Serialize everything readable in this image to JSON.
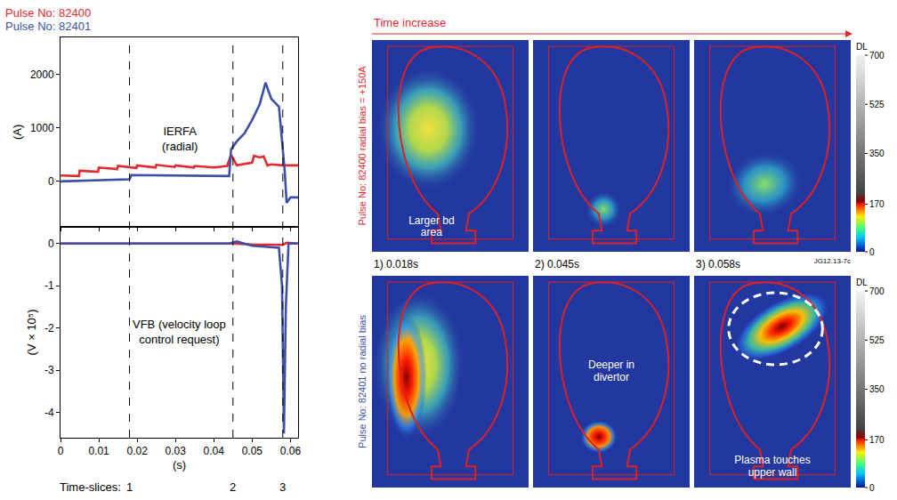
{
  "chart_data": [
    {
      "type": "line",
      "y_label": "(A)",
      "ylim": [
        -850,
        2700
      ],
      "yticks": [
        0,
        1000,
        2000
      ],
      "xlim": [
        0,
        0.062
      ],
      "xticks": [
        0,
        0.01,
        0.02,
        0.03,
        0.04,
        0.05,
        0.06
      ],
      "tick_labels": "y",
      "legend": "top left",
      "series": [
        {
          "name": "Pulse No: 82400",
          "color": "#e8262d",
          "x": [
            0,
            0.0048,
            0.005,
            0.0098,
            0.01,
            0.0148,
            0.015,
            0.0198,
            0.02,
            0.0248,
            0.025,
            0.0298,
            0.03,
            0.0348,
            0.035,
            0.0398,
            0.04,
            0.0435,
            0.0445,
            0.046,
            0.048,
            0.05,
            0.0505,
            0.052,
            0.053,
            0.054,
            0.055,
            0.058,
            0.062
          ],
          "values": [
            110,
            100,
            200,
            180,
            260,
            230,
            290,
            250,
            300,
            260,
            310,
            270,
            300,
            260,
            290,
            250,
            260,
            290,
            500,
            300,
            330,
            350,
            480,
            450,
            470,
            300,
            320,
            300,
            300
          ]
        },
        {
          "name": "Pulse No: 82401",
          "color": "#3d4fa6",
          "x": [
            0,
            0.005,
            0.01,
            0.015,
            0.018,
            0.0185,
            0.03,
            0.044,
            0.0445,
            0.046,
            0.048,
            0.05,
            0.052,
            0.0535,
            0.055,
            0.057,
            0.0585,
            0.059,
            0.0595,
            0.06,
            0.062
          ],
          "values": [
            0,
            10,
            20,
            30,
            40,
            120,
            110,
            100,
            600,
            750,
            900,
            1150,
            1450,
            1850,
            1550,
            1400,
            200,
            -400,
            -350,
            -300,
            -300
          ]
        }
      ],
      "annotations": [
        {
          "text": "IERFA\n(radial)",
          "x": 0.031,
          "y": 800
        }
      ]
    },
    {
      "type": "line",
      "y_label": "(V × 10⁵)",
      "x_label": "(s)",
      "ylim": [
        -4.6,
        0.4
      ],
      "yticks": [
        0,
        -1,
        -2,
        -3,
        -4
      ],
      "xlim": [
        0,
        0.062
      ],
      "xticks": [
        0,
        0.01,
        0.02,
        0.03,
        0.04,
        0.05,
        0.06
      ],
      "series": [
        {
          "name": "Pulse No: 82400",
          "color": "#e8262d",
          "x": [
            0,
            0.045,
            0.05,
            0.058,
            0.059,
            0.062
          ],
          "values": [
            0,
            0,
            -0.02,
            -0.03,
            0.02,
            0
          ]
        },
        {
          "name": "Pulse No: 82401",
          "color": "#3d4fa6",
          "x": [
            0,
            0.044,
            0.046,
            0.05,
            0.057,
            0.0578,
            0.0583,
            0.0588,
            0.0595,
            0.062
          ],
          "values": [
            0,
            0,
            0.05,
            -0.05,
            -0.1,
            -1.0,
            -4.5,
            -1.5,
            0,
            0
          ]
        }
      ],
      "annotations": [
        {
          "text": "VFB (velocity loop\ncontrol request)",
          "x": 0.031,
          "y": -2.1
        }
      ],
      "time_slices": {
        "label": "Time-slices:",
        "x": [
          0.018,
          0.045,
          0.058
        ],
        "labels": [
          "1",
          "2",
          "3"
        ]
      }
    }
  ],
  "images": {
    "header": "Time increase",
    "rows": [
      {
        "label": "Pulse No: 82400 radial bias = +150A",
        "color": "#e8262d",
        "notes": [
          "Larger bd\narea",
          null,
          null
        ]
      },
      {
        "label": "Pulse No: 82401 no radial bias",
        "color": "#3d4fa6",
        "notes": [
          null,
          "Deeper in\ndivertor",
          "Plasma touches\nupper wall"
        ]
      }
    ],
    "time_labels": [
      "1) 0.018s",
      "2) 0.045s",
      "3) 0.058s"
    ],
    "code": "JG12.13-7c",
    "colorbar": {
      "title": "DL",
      "range": [
        0,
        700
      ],
      "ticks": [
        0,
        170,
        350,
        525,
        700
      ]
    }
  }
}
